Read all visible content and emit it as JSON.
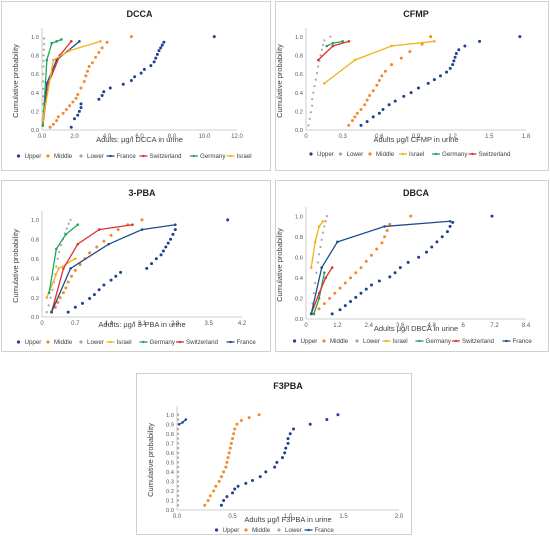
{
  "colors": {
    "Upper": "#1f3f8f",
    "Middle": "#f08a2c",
    "Lower": "#a6a6a6",
    "France": "#1f4e8c",
    "Switzerland": "#e03030",
    "Germany": "#22a55a",
    "Israel": "#f2b21b"
  },
  "chart_data": [
    {
      "type": "scatter",
      "title": "DCCA",
      "xlabel": "Adults: μg/l DCCA in urine",
      "ylabel": "Cumulative probability",
      "xlim": [
        0,
        12
      ],
      "ylim": [
        0,
        1.05
      ],
      "xticks": [
        "0.0",
        "2.0",
        "4.0",
        "6.0",
        "8.0",
        "10.0",
        "12.0"
      ],
      "yticks": [
        "0.0",
        "0.2",
        "0.4",
        "0.6",
        "0.8",
        "1.0"
      ],
      "legend": [
        "Upper",
        "Middle",
        "Lower",
        "France",
        "Switzerland",
        "Germany",
        "Israel"
      ],
      "series": [
        {
          "name": "Upper",
          "style": "dots",
          "x": [
            1.8,
            2.0,
            2.2,
            2.3,
            2.4,
            2.4,
            3.5,
            3.7,
            3.8,
            4.2,
            5.0,
            5.5,
            5.7,
            6.1,
            6.3,
            6.7,
            6.9,
            7.0,
            7.1,
            7.2,
            7.3,
            7.4,
            7.5,
            10.6
          ],
          "y": [
            0.03,
            0.12,
            0.16,
            0.2,
            0.24,
            0.28,
            0.33,
            0.37,
            0.41,
            0.45,
            0.49,
            0.53,
            0.57,
            0.61,
            0.65,
            0.69,
            0.73,
            0.77,
            0.81,
            0.85,
            0.88,
            0.91,
            0.94,
            1.0
          ]
        },
        {
          "name": "Middle",
          "style": "dots",
          "x": [
            0.5,
            0.7,
            0.9,
            1.0,
            1.3,
            1.5,
            1.7,
            1.9,
            2.1,
            2.2,
            2.4,
            2.6,
            2.7,
            2.8,
            2.9,
            3.1,
            3.3,
            3.5,
            3.7,
            4.0,
            5.5
          ],
          "y": [
            0.03,
            0.06,
            0.1,
            0.14,
            0.18,
            0.22,
            0.26,
            0.3,
            0.34,
            0.38,
            0.45,
            0.52,
            0.58,
            0.63,
            0.68,
            0.72,
            0.78,
            0.83,
            0.88,
            0.94,
            1.0
          ]
        },
        {
          "name": "Lower",
          "style": "dots",
          "x": [
            0.05,
            0.05,
            0.06,
            0.06,
            0.07,
            0.07,
            0.08,
            0.08,
            0.09,
            0.1,
            0.1,
            0.11,
            0.12,
            0.13
          ],
          "y": [
            0.05,
            0.12,
            0.2,
            0.28,
            0.36,
            0.44,
            0.52,
            0.6,
            0.68,
            0.74,
            0.8,
            0.86,
            0.92,
            0.98
          ]
        },
        {
          "name": "France",
          "style": "line",
          "x": [
            0.05,
            0.3,
            0.9,
            2.3
          ],
          "y": [
            0.05,
            0.5,
            0.75,
            0.95
          ]
        },
        {
          "name": "Switzerland",
          "style": "line",
          "x": [
            0.05,
            0.4,
            1.1,
            1.8
          ],
          "y": [
            0.05,
            0.5,
            0.8,
            0.95
          ]
        },
        {
          "name": "Germany",
          "style": "line",
          "x": [
            0.05,
            0.3,
            0.6,
            0.9,
            1.2
          ],
          "y": [
            0.05,
            0.75,
            0.93,
            0.95,
            0.97
          ]
        },
        {
          "name": "Israel",
          "style": "line",
          "x": [
            0.05,
            0.7,
            1.7,
            3.6
          ],
          "y": [
            0.1,
            0.75,
            0.85,
            0.95
          ]
        }
      ]
    },
    {
      "type": "scatter",
      "title": "CFMP",
      "xlabel": "Adults μg/l CFMP in urine",
      "ylabel": "Cumulative probability",
      "xlim": [
        0,
        1.8
      ],
      "ylim": [
        0,
        1.05
      ],
      "xticks": [
        "0",
        "0.3",
        "0.6",
        "0.9",
        "1.2",
        "1.5",
        "1.8"
      ],
      "yticks": [
        "0.0",
        "0.2",
        "0.4",
        "0.6",
        "0.8",
        "1.0"
      ],
      "legend": [
        "Upper",
        "Lower",
        "Middle",
        "Israel",
        "Germany",
        "Switzerland"
      ],
      "series": [
        {
          "name": "Upper",
          "style": "dots",
          "x": [
            0.45,
            0.5,
            0.55,
            0.6,
            0.63,
            0.68,
            0.73,
            0.8,
            0.86,
            0.92,
            1.0,
            1.05,
            1.1,
            1.15,
            1.18,
            1.2,
            1.21,
            1.22,
            1.23,
            1.25,
            1.3,
            1.42,
            1.75
          ],
          "y": [
            0.05,
            0.09,
            0.14,
            0.18,
            0.22,
            0.27,
            0.31,
            0.36,
            0.4,
            0.45,
            0.5,
            0.54,
            0.58,
            0.62,
            0.66,
            0.7,
            0.74,
            0.78,
            0.82,
            0.86,
            0.9,
            0.95,
            1.0
          ]
        },
        {
          "name": "Lower",
          "style": "dots",
          "x": [
            0.02,
            0.03,
            0.04,
            0.05,
            0.05,
            0.06,
            0.07,
            0.08,
            0.09,
            0.1,
            0.11,
            0.12,
            0.13,
            0.14,
            0.15,
            0.2
          ],
          "y": [
            0.05,
            0.12,
            0.19,
            0.26,
            0.33,
            0.4,
            0.47,
            0.54,
            0.61,
            0.68,
            0.74,
            0.8,
            0.86,
            0.91,
            0.96,
            1.0
          ]
        },
        {
          "name": "Middle",
          "style": "dots",
          "x": [
            0.35,
            0.38,
            0.4,
            0.42,
            0.45,
            0.48,
            0.5,
            0.52,
            0.55,
            0.58,
            0.6,
            0.62,
            0.65,
            0.7,
            0.78,
            0.85,
            0.95,
            1.02
          ],
          "y": [
            0.05,
            0.1,
            0.14,
            0.18,
            0.22,
            0.27,
            0.32,
            0.37,
            0.42,
            0.48,
            0.53,
            0.58,
            0.63,
            0.7,
            0.77,
            0.84,
            0.92,
            1.0
          ]
        },
        {
          "name": "Israel",
          "style": "line",
          "x": [
            0.15,
            0.4,
            0.7,
            1.05
          ],
          "y": [
            0.5,
            0.75,
            0.9,
            0.95
          ]
        },
        {
          "name": "Germany",
          "style": "line",
          "x": [
            0.17,
            0.22,
            0.3
          ],
          "y": [
            0.9,
            0.93,
            0.95
          ]
        },
        {
          "name": "Switzerland",
          "style": "line",
          "x": [
            0.1,
            0.22,
            0.35
          ],
          "y": [
            0.75,
            0.9,
            0.95
          ]
        }
      ]
    },
    {
      "type": "scatter",
      "title": "3-PBA",
      "xlabel": "Adults: μg/l 3-PBA in urine",
      "ylabel": "Cumulative probability",
      "xlim": [
        0,
        4.2
      ],
      "ylim": [
        0,
        1.05
      ],
      "xticks": [
        "0",
        "0.7",
        "1.4",
        "2.1",
        "2.8",
        "3.5",
        "4.2"
      ],
      "yticks": [
        "0.0",
        "0.2",
        "0.4",
        "0.6",
        "0.8",
        "1.0"
      ],
      "legend": [
        "Upper",
        "Middle",
        "Lower",
        "Israel",
        "Germany",
        "Switzerland",
        "France"
      ],
      "series": [
        {
          "name": "Upper",
          "style": "dots",
          "x": [
            0.55,
            0.7,
            0.85,
            1.0,
            1.1,
            1.2,
            1.3,
            1.45,
            1.55,
            1.65,
            2.2,
            2.3,
            2.4,
            2.5,
            2.55,
            2.6,
            2.65,
            2.7,
            2.75,
            2.8,
            3.9
          ],
          "y": [
            0.05,
            0.1,
            0.14,
            0.19,
            0.23,
            0.28,
            0.33,
            0.38,
            0.42,
            0.46,
            0.5,
            0.55,
            0.6,
            0.64,
            0.68,
            0.72,
            0.76,
            0.8,
            0.85,
            0.9,
            1.0
          ]
        },
        {
          "name": "Middle",
          "style": "dots",
          "x": [
            0.2,
            0.28,
            0.33,
            0.38,
            0.45,
            0.5,
            0.55,
            0.62,
            0.7,
            0.8,
            0.9,
            1.0,
            1.15,
            1.3,
            1.45,
            1.6,
            1.8,
            2.1
          ],
          "y": [
            0.05,
            0.1,
            0.15,
            0.2,
            0.25,
            0.3,
            0.36,
            0.42,
            0.48,
            0.54,
            0.6,
            0.66,
            0.72,
            0.78,
            0.84,
            0.9,
            0.95,
            1.0
          ]
        },
        {
          "name": "Lower",
          "style": "dots",
          "x": [
            0.1,
            0.14,
            0.18,
            0.22,
            0.25,
            0.28,
            0.3,
            0.33,
            0.36,
            0.4,
            0.44,
            0.48,
            0.52,
            0.56,
            0.6
          ],
          "y": [
            0.05,
            0.12,
            0.2,
            0.28,
            0.36,
            0.44,
            0.52,
            0.6,
            0.67,
            0.74,
            0.8,
            0.86,
            0.91,
            0.96,
            1.0
          ]
        },
        {
          "name": "Israel",
          "style": "line",
          "x": [
            0.1,
            0.35,
            0.7
          ],
          "y": [
            0.2,
            0.5,
            0.6
          ]
        },
        {
          "name": "Germany",
          "style": "line",
          "x": [
            0.15,
            0.3,
            0.5,
            0.75
          ],
          "y": [
            0.25,
            0.7,
            0.85,
            0.95
          ]
        },
        {
          "name": "Switzerland",
          "style": "line",
          "x": [
            0.2,
            0.45,
            0.75,
            1.2,
            1.9
          ],
          "y": [
            0.05,
            0.5,
            0.75,
            0.9,
            0.95
          ]
        },
        {
          "name": "France",
          "style": "line",
          "x": [
            0.2,
            0.6,
            1.4,
            2.1,
            2.8
          ],
          "y": [
            0.05,
            0.5,
            0.75,
            0.9,
            0.95
          ]
        }
      ]
    },
    {
      "type": "scatter",
      "title": "DBCA",
      "xlabel": "Adults μg/l DBCA in urine",
      "ylabel": "Cumulative probability",
      "xlim": [
        0,
        8.4
      ],
      "ylim": [
        0,
        1.05
      ],
      "xticks": [
        "0",
        "1.2",
        "2.4",
        "3.6",
        "4.8",
        "6",
        "7.2",
        "8.4"
      ],
      "yticks": [
        "0.0",
        "0.2",
        "0.4",
        "0.6",
        "0.8",
        "1.0"
      ],
      "legend": [
        "Upper",
        "Middle",
        "Lower",
        "Israel",
        "Germany",
        "Switzerland",
        "France"
      ],
      "series": [
        {
          "name": "Upper",
          "style": "dots",
          "x": [
            1.0,
            1.3,
            1.5,
            1.7,
            1.9,
            2.1,
            2.3,
            2.5,
            2.8,
            3.2,
            3.4,
            3.6,
            3.9,
            4.3,
            4.6,
            4.8,
            5.0,
            5.2,
            5.4,
            5.5,
            5.6,
            7.1
          ],
          "y": [
            0.05,
            0.09,
            0.13,
            0.17,
            0.21,
            0.25,
            0.29,
            0.33,
            0.37,
            0.41,
            0.45,
            0.5,
            0.55,
            0.6,
            0.65,
            0.7,
            0.75,
            0.8,
            0.85,
            0.9,
            0.94,
            1.0
          ]
        },
        {
          "name": "Middle",
          "style": "dots",
          "x": [
            0.3,
            0.5,
            0.7,
            0.9,
            1.1,
            1.3,
            1.5,
            1.7,
            1.9,
            2.1,
            2.3,
            2.5,
            2.7,
            2.9,
            3.0,
            3.1,
            3.2,
            4.0
          ],
          "y": [
            0.05,
            0.1,
            0.15,
            0.2,
            0.25,
            0.3,
            0.35,
            0.4,
            0.45,
            0.5,
            0.56,
            0.62,
            0.68,
            0.74,
            0.8,
            0.86,
            0.92,
            1.0
          ]
        },
        {
          "name": "Lower",
          "style": "dots",
          "x": [
            0.2,
            0.25,
            0.3,
            0.35,
            0.4,
            0.45,
            0.5,
            0.55,
            0.6,
            0.65,
            0.7,
            0.75,
            0.8
          ],
          "y": [
            0.05,
            0.15,
            0.25,
            0.35,
            0.45,
            0.55,
            0.63,
            0.7,
            0.77,
            0.84,
            0.9,
            0.95,
            1.0
          ]
        },
        {
          "name": "Israel",
          "style": "line",
          "x": [
            0.2,
            0.35,
            0.5,
            0.65
          ],
          "y": [
            0.5,
            0.75,
            0.9,
            0.95
          ]
        },
        {
          "name": "Germany",
          "style": "line",
          "x": [
            0.3,
            0.5,
            0.7
          ],
          "y": [
            0.05,
            0.2,
            0.45
          ]
        },
        {
          "name": "Switzerland",
          "style": "line",
          "x": [
            0.2,
            0.5,
            0.75,
            1.0
          ],
          "y": [
            0.05,
            0.25,
            0.4,
            0.5
          ]
        },
        {
          "name": "France",
          "style": "line",
          "x": [
            0.2,
            0.6,
            1.2,
            3.0,
            5.5
          ],
          "y": [
            0.05,
            0.5,
            0.75,
            0.9,
            0.95
          ]
        }
      ]
    },
    {
      "type": "scatter",
      "title": "F3PBA",
      "xlabel": "Adults μg/l F3PBA in urine",
      "ylabel": "Cumulative probability",
      "xlim": [
        0,
        2.0
      ],
      "ylim": [
        0,
        1.05
      ],
      "xticks": [
        "0.0",
        "0.5",
        "1.0",
        "1.5",
        "2.0"
      ],
      "yticks": [
        "0.0",
        "0.1",
        "0.2",
        "0.3",
        "0.4",
        "0.5",
        "0.6",
        "0.7",
        "0.8",
        "0.9",
        "1.0"
      ],
      "legend": [
        "Upper",
        "Middle",
        "Lower",
        "France"
      ],
      "series": [
        {
          "name": "Upper",
          "style": "dots",
          "x": [
            0.4,
            0.42,
            0.45,
            0.5,
            0.52,
            0.55,
            0.62,
            0.68,
            0.75,
            0.8,
            0.88,
            0.9,
            0.95,
            0.97,
            0.98,
            1.0,
            1.0,
            1.02,
            1.05,
            1.2,
            1.35,
            1.45
          ],
          "y": [
            0.05,
            0.1,
            0.14,
            0.18,
            0.22,
            0.25,
            0.28,
            0.31,
            0.35,
            0.4,
            0.45,
            0.5,
            0.55,
            0.6,
            0.65,
            0.7,
            0.75,
            0.8,
            0.85,
            0.9,
            0.95,
            1.0
          ]
        },
        {
          "name": "Middle",
          "style": "dots",
          "x": [
            0.25,
            0.28,
            0.3,
            0.33,
            0.35,
            0.38,
            0.4,
            0.42,
            0.44,
            0.45,
            0.46,
            0.47,
            0.48,
            0.49,
            0.5,
            0.51,
            0.52,
            0.54,
            0.58,
            0.65,
            0.74
          ],
          "y": [
            0.05,
            0.1,
            0.15,
            0.2,
            0.25,
            0.3,
            0.35,
            0.4,
            0.45,
            0.5,
            0.55,
            0.6,
            0.65,
            0.7,
            0.75,
            0.8,
            0.85,
            0.9,
            0.94,
            0.97,
            1.0
          ]
        },
        {
          "name": "Lower",
          "style": "dots",
          "x": [
            0.01,
            0.01,
            0.01,
            0.01,
            0.01,
            0.01,
            0.01,
            0.01,
            0.01,
            0.01,
            0.01,
            0.01,
            0.01,
            0.01,
            0.01,
            0.01,
            0.01,
            0.01,
            0.01,
            0.01
          ],
          "y": [
            0.05,
            0.1,
            0.15,
            0.2,
            0.25,
            0.3,
            0.35,
            0.4,
            0.45,
            0.5,
            0.55,
            0.6,
            0.65,
            0.7,
            0.75,
            0.8,
            0.85,
            0.9,
            0.95,
            1.0
          ]
        },
        {
          "name": "France",
          "style": "line",
          "x": [
            0.02,
            0.05,
            0.08
          ],
          "y": [
            0.9,
            0.92,
            0.95
          ]
        }
      ]
    }
  ]
}
